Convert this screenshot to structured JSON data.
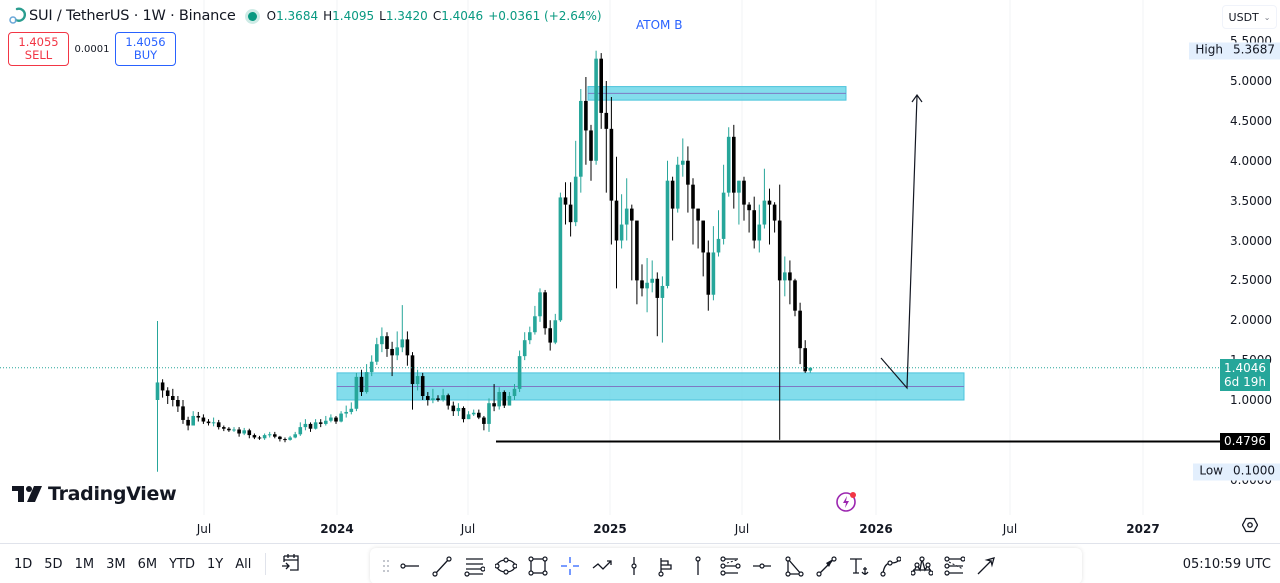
{
  "header": {
    "title": "SUI / TetherUS · 1W · Binance",
    "symbol": "SUI",
    "quote": "TetherUS",
    "interval": "1W",
    "exchange": "Binance",
    "status_color": "#089981",
    "ohlc": {
      "open_label": "O",
      "open": "1.3684",
      "high_label": "H",
      "high": "1.4095",
      "low_label": "L",
      "low": "1.3420",
      "close_label": "C",
      "close": "1.4046",
      "change": "+0.0361 (+2.64%)"
    }
  },
  "trade": {
    "sell_price": "1.4055",
    "sell_label": "SELL",
    "spread": "0.0001",
    "buy_price": "1.4056",
    "buy_label": "BUY"
  },
  "annotation": {
    "text": "ATOM B",
    "color": "#2962ff"
  },
  "logo": {
    "text": "TradingView"
  },
  "price_scale": {
    "currency": "USDT",
    "ticks": [
      "5.5000",
      "5.0000",
      "4.5000",
      "4.0000",
      "3.5000",
      "3.0000",
      "2.5000",
      "2.0000",
      "1.5000",
      "1.0000",
      "0.0000"
    ],
    "high": {
      "label": "High",
      "value": "5.3687"
    },
    "low": {
      "label": "Low",
      "value": "0.1000"
    },
    "last_price": {
      "value": "1.4046",
      "countdown": "6d 19h",
      "color": "#26a69a"
    },
    "level": {
      "value": "0.4796"
    }
  },
  "time_scale": {
    "labels": [
      {
        "text": "Jul",
        "year": false
      },
      {
        "text": "2024",
        "year": true
      },
      {
        "text": "Jul",
        "year": false
      },
      {
        "text": "2025",
        "year": true
      },
      {
        "text": "Jul",
        "year": false
      },
      {
        "text": "2026",
        "year": true
      },
      {
        "text": "Jul",
        "year": false
      },
      {
        "text": "2027",
        "year": true
      }
    ]
  },
  "bottom_bar": {
    "ranges": [
      "1D",
      "5D",
      "1M",
      "3M",
      "6M",
      "YTD",
      "1Y",
      "All"
    ],
    "goto_date_icon": "calendar-arrow-icon",
    "drawing_tools": [
      "horizontal-ray-icon",
      "trend-line-icon",
      "parallel-channel-icon",
      "ellipse-icon",
      "rectangle-icon",
      "crosshair-icon",
      "path-icon",
      "vertical-line-icon",
      "long-position-icon",
      "price-label-icon",
      "fib-retracement-icon",
      "horizontal-line-icon",
      "triangle-icon",
      "arrow-icon",
      "anchored-text-icon",
      "curve-icon",
      "head-shoulders-icon",
      "fib-channel-icon",
      "arrow-marker-icon"
    ],
    "clock": "05:10:59 UTC"
  },
  "chart_data": {
    "type": "candlestick",
    "title": "SUI / TetherUS · 1W · Binance",
    "ylabel": "USDT",
    "ylim": [
      0,
      5.5
    ],
    "x_ticks": [
      "Jul 2023",
      "2024",
      "Jul 2024",
      "2025",
      "Jul 2025",
      "2026",
      "Jul 2026",
      "2027"
    ],
    "all_time_high": 5.3687,
    "all_time_low": 0.1,
    "last_close": 1.4046,
    "zones": [
      {
        "name": "upper-resistance-zone",
        "from": 4.76,
        "to": 4.93,
        "color": "#5ad1e6"
      },
      {
        "name": "support-zone",
        "from": 1.0,
        "to": 1.34,
        "color": "#5ad1e6"
      }
    ],
    "horizontal_levels": [
      0.4796
    ],
    "projection": "down to ~1.12 then arrow up to ~4.8",
    "candles": [
      [
        1.0,
        1.22,
        0.1,
        1.99
      ],
      [
        1.22,
        1.12,
        1.03,
        1.26
      ],
      [
        1.12,
        1.05,
        0.95,
        1.16
      ],
      [
        1.05,
        1.0,
        0.92,
        1.14
      ],
      [
        1.0,
        0.92,
        0.85,
        1.05
      ],
      [
        0.92,
        0.75,
        0.7,
        1.0
      ],
      [
        0.75,
        0.68,
        0.62,
        0.79
      ],
      [
        0.68,
        0.8,
        0.72,
        0.86
      ],
      [
        0.8,
        0.78,
        0.73,
        0.85
      ],
      [
        0.78,
        0.73,
        0.7,
        0.82
      ],
      [
        0.73,
        0.71,
        0.68,
        0.76
      ],
      [
        0.71,
        0.72,
        0.67,
        0.78
      ],
      [
        0.72,
        0.66,
        0.63,
        0.75
      ],
      [
        0.66,
        0.64,
        0.61,
        0.68
      ],
      [
        0.64,
        0.62,
        0.6,
        0.66
      ],
      [
        0.62,
        0.63,
        0.6,
        0.66
      ],
      [
        0.63,
        0.58,
        0.54,
        0.66
      ],
      [
        0.58,
        0.62,
        0.56,
        0.65
      ],
      [
        0.62,
        0.56,
        0.52,
        0.64
      ],
      [
        0.56,
        0.53,
        0.51,
        0.58
      ],
      [
        0.53,
        0.52,
        0.5,
        0.55
      ],
      [
        0.52,
        0.56,
        0.5,
        0.58
      ],
      [
        0.56,
        0.57,
        0.53,
        0.6
      ],
      [
        0.57,
        0.54,
        0.52,
        0.6
      ],
      [
        0.54,
        0.51,
        0.48,
        0.55
      ],
      [
        0.51,
        0.5,
        0.47,
        0.53
      ],
      [
        0.5,
        0.53,
        0.49,
        0.55
      ],
      [
        0.53,
        0.57,
        0.52,
        0.6
      ],
      [
        0.57,
        0.66,
        0.55,
        0.72
      ],
      [
        0.66,
        0.7,
        0.62,
        0.76
      ],
      [
        0.7,
        0.64,
        0.6,
        0.72
      ],
      [
        0.64,
        0.72,
        0.63,
        0.76
      ],
      [
        0.72,
        0.7,
        0.66,
        0.76
      ],
      [
        0.7,
        0.74,
        0.68,
        0.8
      ],
      [
        0.74,
        0.78,
        0.72,
        0.82
      ],
      [
        0.78,
        0.73,
        0.7,
        0.8
      ],
      [
        0.73,
        0.83,
        0.72,
        0.86
      ],
      [
        0.83,
        0.85,
        0.78,
        0.93
      ],
      [
        0.85,
        0.89,
        0.82,
        0.97
      ],
      [
        0.89,
        1.29,
        0.86,
        1.34
      ],
      [
        1.29,
        1.1,
        1.05,
        1.38
      ],
      [
        1.1,
        1.35,
        1.08,
        1.45
      ],
      [
        1.35,
        1.48,
        1.3,
        1.56
      ],
      [
        1.48,
        1.7,
        1.44,
        1.78
      ],
      [
        1.7,
        1.8,
        1.6,
        1.91
      ],
      [
        1.8,
        1.64,
        1.54,
        1.85
      ],
      [
        1.64,
        1.56,
        1.3,
        1.73
      ],
      [
        1.56,
        1.66,
        1.5,
        1.86
      ],
      [
        1.66,
        1.76,
        1.6,
        2.19
      ],
      [
        1.76,
        1.56,
        1.43,
        1.86
      ],
      [
        1.56,
        1.2,
        0.88,
        1.6
      ],
      [
        1.2,
        1.3,
        1.12,
        1.38
      ],
      [
        1.3,
        1.05,
        1.0,
        1.34
      ],
      [
        1.05,
        1.0,
        0.93,
        1.1
      ],
      [
        1.0,
        1.02,
        0.96,
        1.14
      ],
      [
        1.02,
        1.0,
        0.98,
        1.06
      ],
      [
        1.0,
        1.06,
        0.98,
        1.14
      ],
      [
        1.06,
        0.93,
        0.88,
        1.08
      ],
      [
        0.93,
        0.86,
        0.8,
        0.98
      ],
      [
        0.86,
        0.9,
        0.8,
        0.96
      ],
      [
        0.9,
        0.76,
        0.72,
        0.92
      ],
      [
        0.76,
        0.82,
        0.76,
        0.86
      ],
      [
        0.82,
        0.84,
        0.8,
        0.88
      ],
      [
        0.84,
        0.78,
        0.76,
        0.88
      ],
      [
        0.78,
        0.7,
        0.62,
        0.8
      ],
      [
        0.7,
        0.96,
        0.6,
        1.02
      ],
      [
        0.96,
        0.92,
        0.86,
        1.2
      ],
      [
        0.92,
        1.1,
        0.88,
        1.16
      ],
      [
        1.1,
        0.93,
        0.9,
        1.12
      ],
      [
        0.93,
        1.05,
        0.95,
        1.1
      ],
      [
        1.05,
        1.14,
        1.0,
        1.2
      ],
      [
        1.14,
        1.55,
        1.1,
        1.62
      ],
      [
        1.55,
        1.75,
        1.5,
        1.85
      ],
      [
        1.75,
        1.85,
        1.7,
        1.92
      ],
      [
        1.85,
        2.05,
        1.82,
        2.18
      ],
      [
        2.05,
        2.35,
        1.98,
        2.4
      ],
      [
        2.35,
        1.9,
        1.82,
        2.38
      ],
      [
        1.9,
        1.72,
        1.62,
        2.0
      ],
      [
        1.72,
        2.0,
        1.7,
        2.08
      ],
      [
        2.0,
        3.54,
        1.98,
        3.6
      ],
      [
        3.54,
        3.45,
        3.2,
        3.73
      ],
      [
        3.45,
        3.23,
        3.05,
        3.73
      ],
      [
        3.23,
        3.8,
        3.18,
        4.25
      ],
      [
        3.8,
        4.75,
        3.6,
        4.9
      ],
      [
        4.75,
        4.38,
        3.95,
        5.05
      ],
      [
        4.38,
        4.0,
        3.75,
        4.45
      ],
      [
        4.0,
        5.28,
        3.95,
        5.38
      ],
      [
        5.28,
        4.6,
        4.4,
        5.35
      ],
      [
        4.6,
        4.4,
        3.6,
        5.0
      ],
      [
        4.4,
        3.5,
        2.95,
        4.8
      ],
      [
        3.5,
        3.0,
        2.4,
        4.05
      ],
      [
        3.0,
        3.2,
        2.9,
        3.58
      ],
      [
        3.2,
        3.4,
        3.0,
        3.78
      ],
      [
        3.4,
        3.25,
        2.5,
        3.45
      ],
      [
        3.25,
        2.5,
        2.2,
        3.2
      ],
      [
        2.5,
        2.4,
        2.3,
        2.7
      ],
      [
        2.4,
        2.47,
        2.1,
        2.78
      ],
      [
        2.47,
        2.52,
        2.35,
        2.75
      ],
      [
        2.52,
        2.28,
        1.8,
        2.6
      ],
      [
        2.28,
        2.43,
        1.72,
        2.55
      ],
      [
        2.43,
        3.75,
        2.4,
        4.0
      ],
      [
        3.75,
        3.4,
        3.0,
        3.8
      ],
      [
        3.4,
        3.95,
        3.35,
        4.05
      ],
      [
        3.95,
        4.0,
        3.8,
        4.28
      ],
      [
        4.0,
        3.7,
        3.35,
        4.18
      ],
      [
        3.7,
        3.4,
        2.95,
        3.78
      ],
      [
        3.4,
        3.25,
        2.9,
        3.4
      ],
      [
        3.25,
        2.85,
        2.55,
        3.25
      ],
      [
        2.85,
        2.32,
        2.12,
        3.0
      ],
      [
        2.32,
        2.85,
        2.25,
        3.18
      ],
      [
        2.85,
        3.02,
        2.8,
        3.38
      ],
      [
        3.02,
        3.6,
        2.95,
        3.95
      ],
      [
        3.6,
        4.3,
        3.55,
        4.42
      ],
      [
        4.3,
        3.6,
        3.4,
        4.45
      ],
      [
        3.6,
        3.75,
        3.2,
        3.75
      ],
      [
        3.75,
        3.45,
        3.25,
        3.8
      ],
      [
        3.45,
        3.38,
        3.1,
        3.48
      ],
      [
        3.38,
        3.0,
        2.9,
        3.55
      ],
      [
        3.0,
        3.2,
        2.85,
        3.45
      ],
      [
        3.2,
        3.5,
        3.15,
        3.9
      ],
      [
        3.5,
        3.45,
        2.95,
        3.65
      ],
      [
        3.45,
        3.25,
        3.1,
        3.48
      ],
      [
        3.25,
        2.5,
        0.5,
        3.7
      ],
      [
        2.5,
        2.6,
        2.3,
        2.8
      ],
      [
        2.6,
        2.5,
        2.2,
        2.75
      ],
      [
        2.5,
        2.12,
        2.05,
        2.52
      ],
      [
        2.12,
        1.65,
        1.45,
        2.22
      ],
      [
        1.65,
        1.36,
        1.34,
        1.75
      ],
      [
        1.3684,
        1.4046,
        1.342,
        1.4095
      ]
    ]
  }
}
